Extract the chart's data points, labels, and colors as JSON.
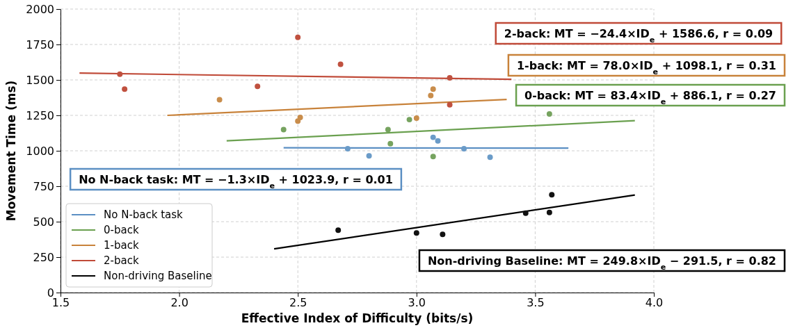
{
  "chart_data": {
    "type": "scatter",
    "xlabel": "Effective Index of Difficulty (bits/s)",
    "ylabel": "Movement Time (ms)",
    "xlim": [
      1.5,
      4.0
    ],
    "xticks": [
      {
        "value": 1.5,
        "label": "1.5"
      },
      {
        "value": 2.0,
        "label": "2.0"
      },
      {
        "value": 2.5,
        "label": "2.5"
      },
      {
        "value": 3.0,
        "label": "3.0"
      },
      {
        "value": 3.5,
        "label": "3.5"
      },
      {
        "value": 4.0,
        "label": "4.0"
      }
    ],
    "ylim": [
      0,
      2000
    ],
    "yticks": [
      0,
      250,
      500,
      750,
      1000,
      1250,
      1500,
      1750,
      2000
    ],
    "grid": true,
    "legend": "bottom left",
    "series": [
      {
        "type": "line",
        "marker": "none",
        "name": "No N-back task",
        "color": "#5b8fc3",
        "x": [
          2.44,
          3.64
        ],
        "values": [
          1021,
          1019
        ]
      },
      {
        "type": "line",
        "marker": "none",
        "name": "0-back",
        "color": "#6aa04f",
        "x": [
          2.2,
          3.92
        ],
        "values": [
          1070,
          1213
        ]
      },
      {
        "type": "line",
        "marker": "none",
        "name": "1-back",
        "color": "#c8823a",
        "x": [
          1.95,
          3.38
        ],
        "values": [
          1250,
          1362
        ]
      },
      {
        "type": "line",
        "marker": "none",
        "name": "2-back",
        "color": "#c04a38",
        "x": [
          1.58,
          3.4
        ],
        "values": [
          1548,
          1504
        ]
      },
      {
        "type": "line",
        "marker": "none",
        "name": "Non-driving Baseline",
        "color": "#000000",
        "x": [
          2.4,
          3.92
        ],
        "values": [
          308,
          688
        ]
      },
      {
        "marker": "circle",
        "color": "#6a9bc8",
        "x": [
          2.71,
          2.8,
          3.07,
          3.09,
          3.2,
          3.31
        ],
        "values": [
          1015,
          965,
          1095,
          1070,
          1015,
          955
        ]
      },
      {
        "marker": "circle",
        "color": "#76a35f",
        "x": [
          2.44,
          2.88,
          2.89,
          2.97,
          3.07,
          3.56
        ],
        "values": [
          1150,
          1150,
          1050,
          1220,
          960,
          1260
        ]
      },
      {
        "marker": "circle",
        "color": "#c98d4b",
        "x": [
          2.17,
          2.5,
          2.51,
          3.0,
          3.06,
          3.07
        ],
        "values": [
          1360,
          1210,
          1235,
          1230,
          1390,
          1435
        ]
      },
      {
        "marker": "circle",
        "color": "#c0513f",
        "x": [
          1.75,
          1.77,
          2.33,
          2.5,
          2.68,
          3.14,
          3.14
        ],
        "values": [
          1540,
          1435,
          1455,
          1800,
          1610,
          1515,
          1325
        ]
      },
      {
        "marker": "circle",
        "color": "#111111",
        "x": [
          2.67,
          3.0,
          3.11,
          3.46,
          3.56,
          3.57
        ],
        "values": [
          440,
          420,
          410,
          560,
          565,
          690
        ]
      }
    ],
    "annotations": [
      "No N-back task: MT = −1.3×ID$_{e}$ + 1023.9, r = 0.01",
      "0-back: MT = 83.4×ID$_{e}$ + 886.1, r = 0.27",
      "1-back: MT = 78.0×ID$_{e}$ + 1098.1, r = 0.31",
      "2-back: MT = −24.4×ID$_{e}$ + 1586.6, r = 0.09",
      "Non-driving Baseline: MT = 249.8×ID$_{e}$ − 291.5, r = 0.82"
    ]
  }
}
